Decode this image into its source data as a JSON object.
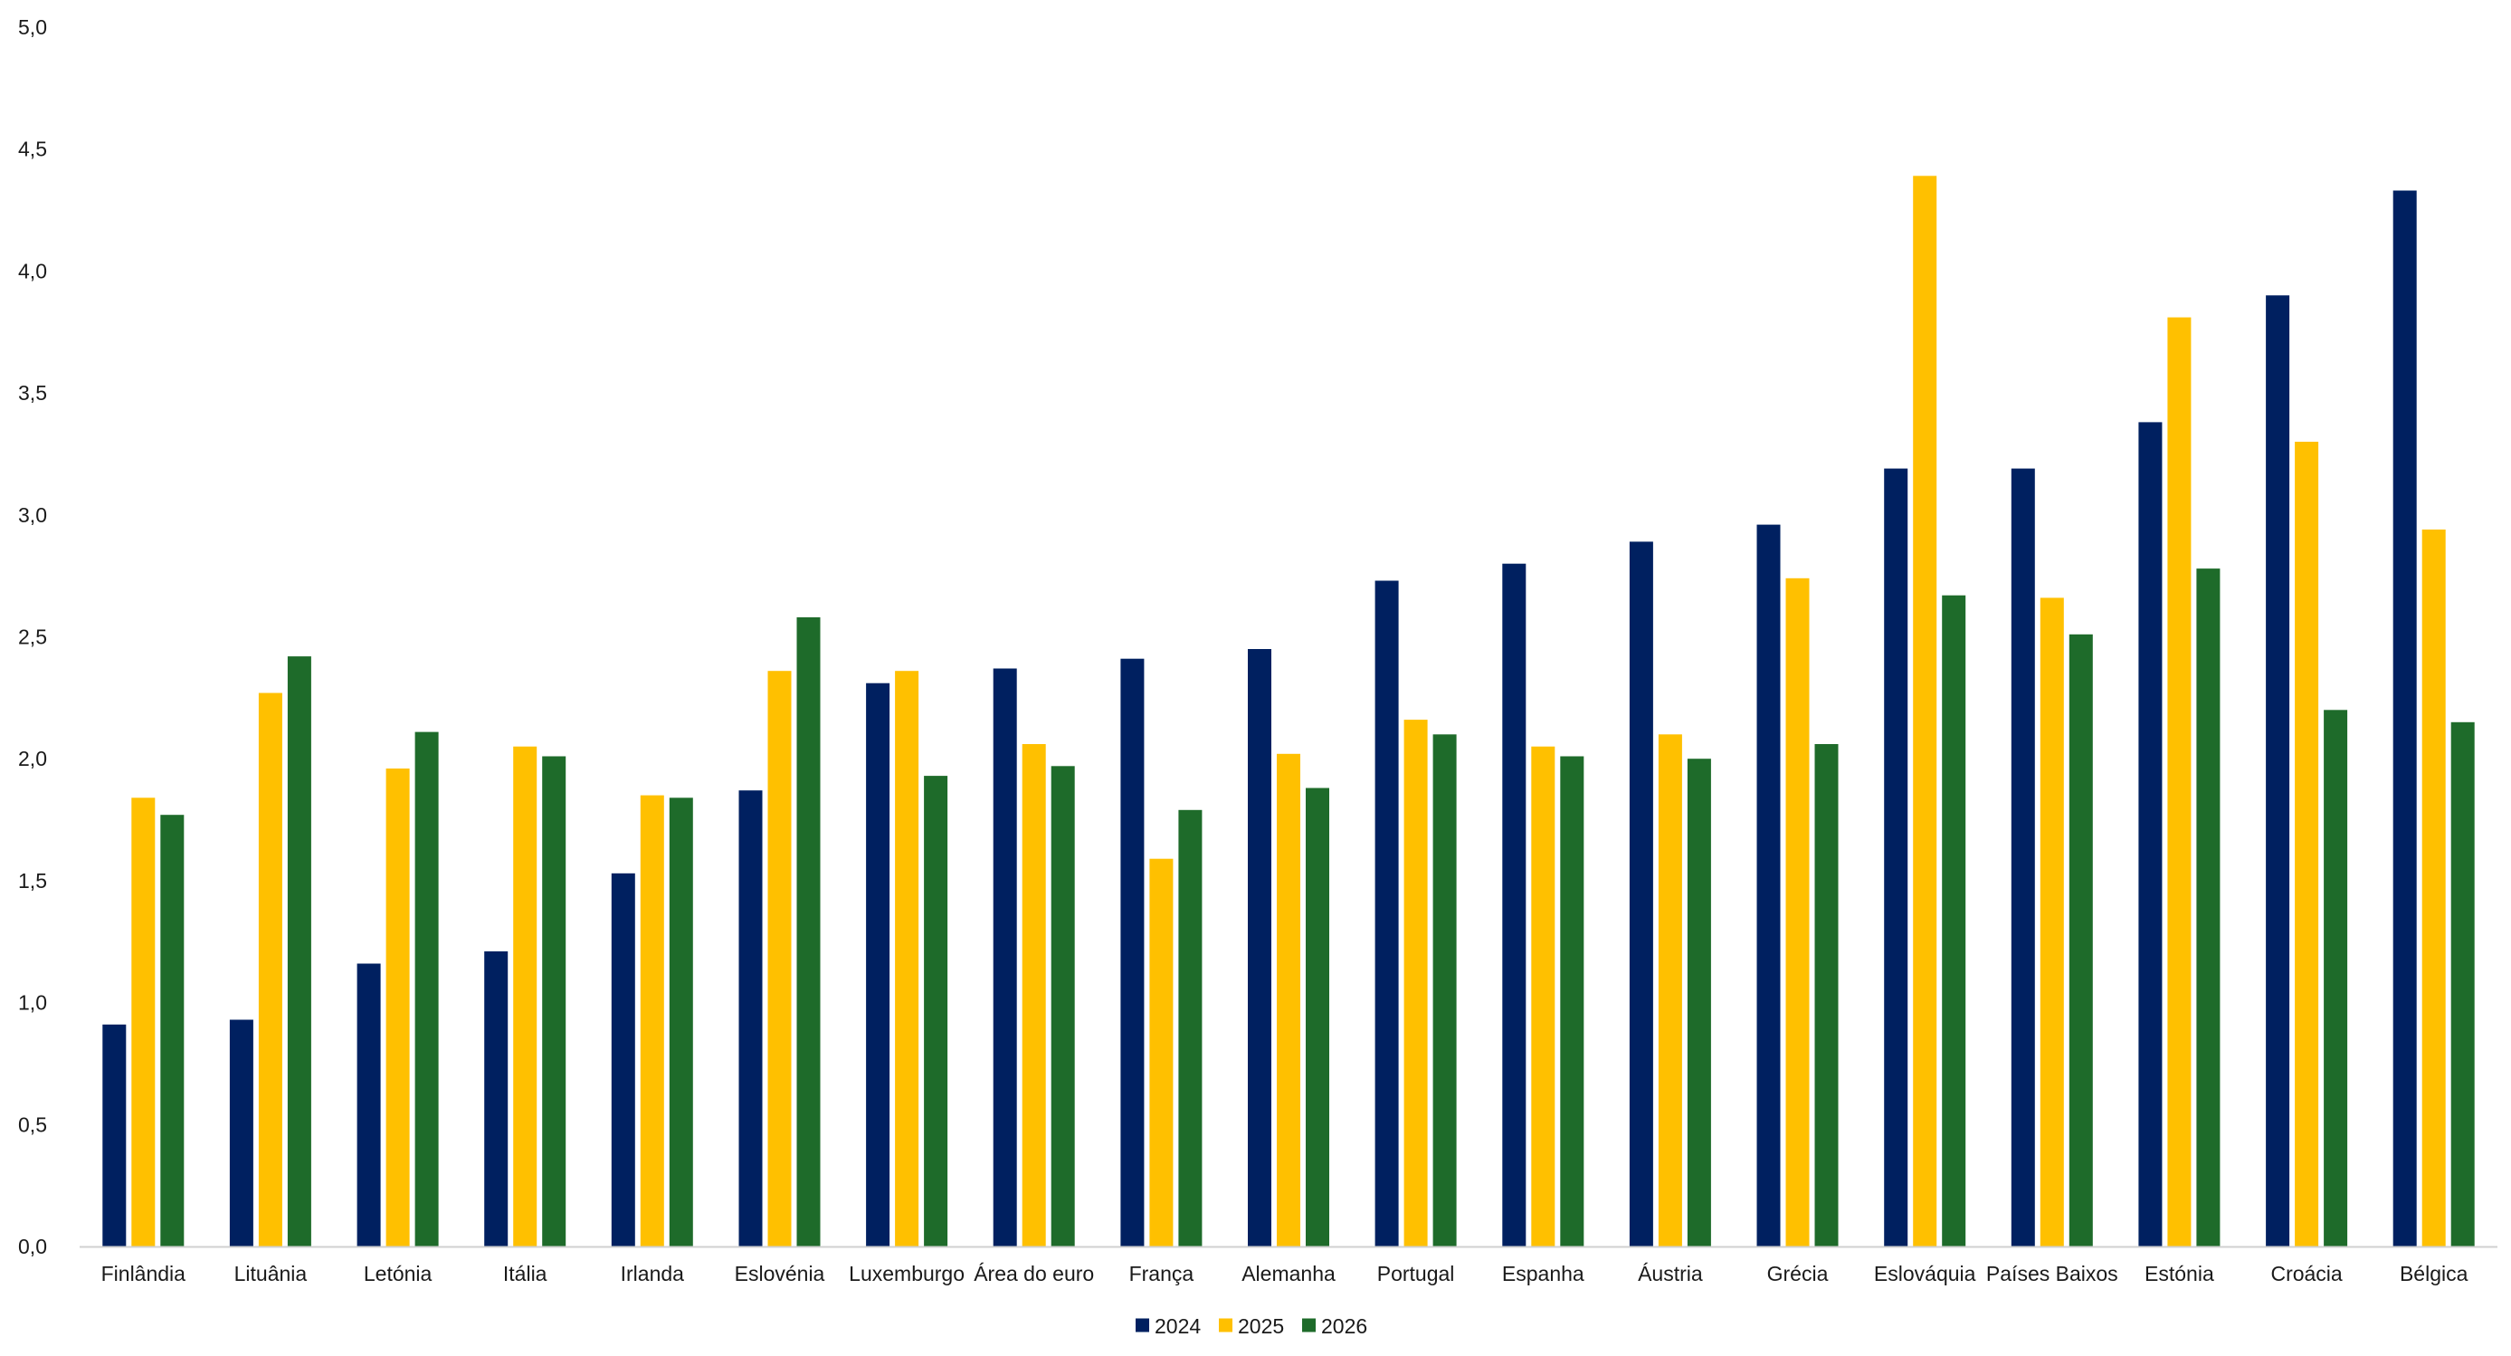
{
  "chart_data": {
    "type": "bar",
    "title": "",
    "xlabel": "",
    "ylabel": "",
    "ylim": [
      0,
      5
    ],
    "yticks": [
      "0,0",
      "0,5",
      "1,0",
      "1,5",
      "2,0",
      "2,5",
      "3,0",
      "3,5",
      "4,0",
      "4,5",
      "5,0"
    ],
    "grid": false,
    "legend_position": "bottom-center",
    "categories": [
      "Finlândia",
      "Lituânia",
      "Letónia",
      "Itália",
      "Irlanda",
      "Eslovénia",
      "Luxemburgo",
      "Área do euro",
      "França",
      "Alemanha",
      "Portugal",
      "Espanha",
      "Áustria",
      "Grécia",
      "Eslováquia",
      "Países Baixos",
      "Estónia",
      "Croácia",
      "Bélgica"
    ],
    "series": [
      {
        "name": "2024",
        "color": "#002060",
        "values": [
          0.91,
          0.93,
          1.16,
          1.21,
          1.53,
          1.87,
          2.31,
          2.37,
          2.41,
          2.45,
          2.73,
          2.8,
          2.89,
          2.96,
          3.19,
          3.19,
          3.38,
          3.9,
          4.33
        ]
      },
      {
        "name": "2025",
        "color": "#FFC000",
        "values": [
          1.84,
          2.27,
          1.96,
          2.05,
          1.85,
          2.36,
          2.36,
          2.06,
          1.59,
          2.02,
          2.16,
          2.05,
          2.1,
          2.74,
          4.39,
          2.66,
          3.81,
          3.3,
          2.94
        ]
      },
      {
        "name": "2026",
        "color": "#1E6B2A",
        "values": [
          1.77,
          2.42,
          2.11,
          2.01,
          1.84,
          2.58,
          1.93,
          1.97,
          1.79,
          1.88,
          2.1,
          2.01,
          2.0,
          2.06,
          2.67,
          2.51,
          2.78,
          2.2,
          2.15
        ]
      }
    ]
  }
}
